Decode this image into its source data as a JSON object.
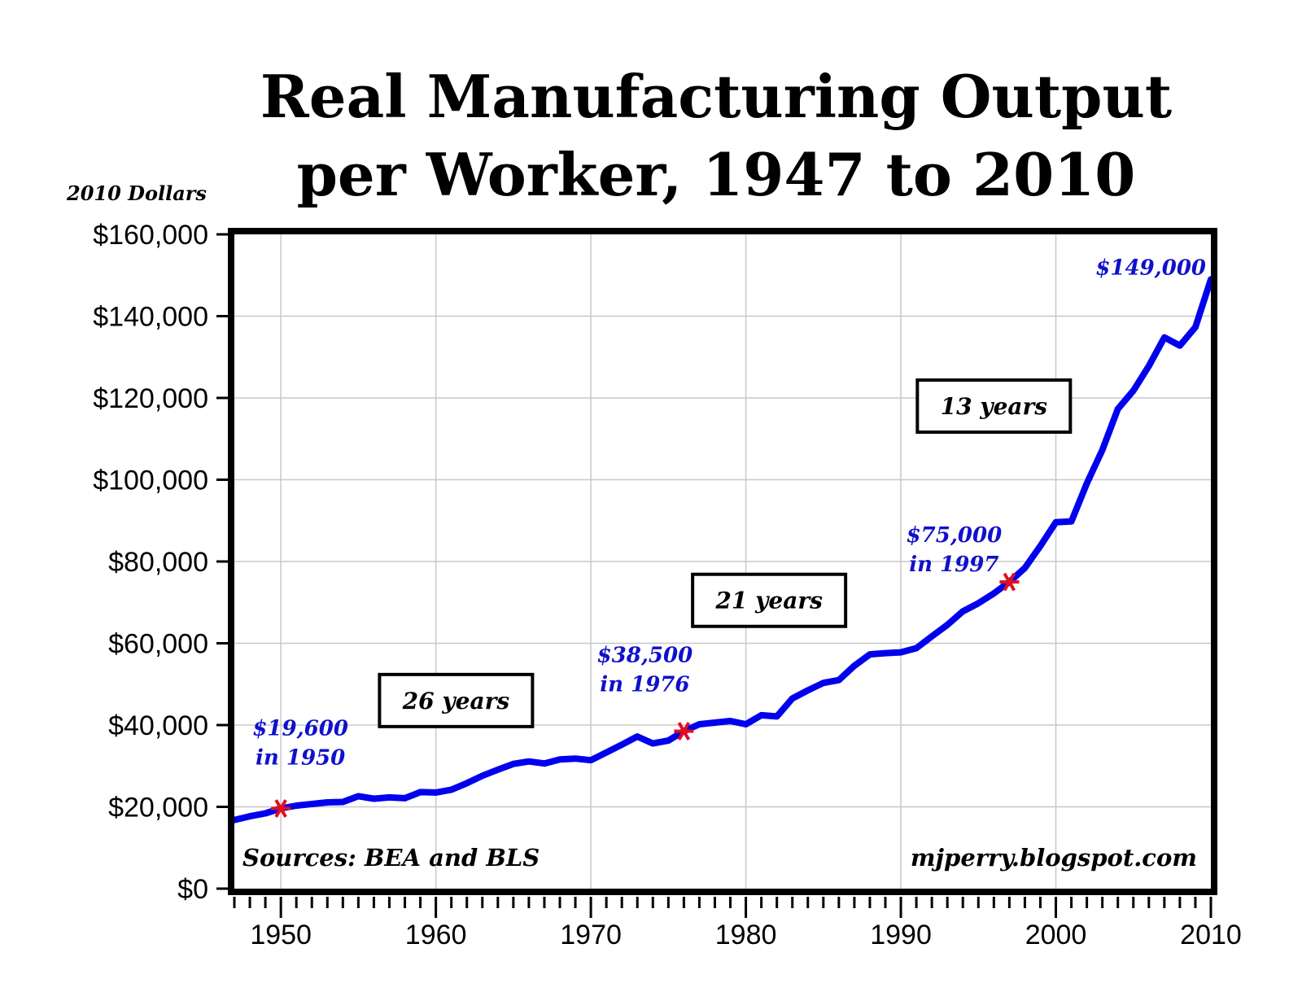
{
  "chart_data": {
    "type": "line",
    "title_lines": [
      "Real Manufacturing Output",
      "per Worker, 1947 to 2010"
    ],
    "ylabel": "2010 Dollars",
    "xlabel": "",
    "xlim": [
      1947,
      2010
    ],
    "ylim": [
      0,
      160000
    ],
    "grid": true,
    "yticks": [
      {
        "value": 0,
        "label": "$0"
      },
      {
        "value": 20000,
        "label": "$20,000"
      },
      {
        "value": 40000,
        "label": "$40,000"
      },
      {
        "value": 60000,
        "label": "$60,000"
      },
      {
        "value": 80000,
        "label": "$80,000"
      },
      {
        "value": 100000,
        "label": "$100,000"
      },
      {
        "value": 120000,
        "label": "$120,000"
      },
      {
        "value": 140000,
        "label": "$140,000"
      },
      {
        "value": 160000,
        "label": "$160,000"
      }
    ],
    "xticks": [
      {
        "value": 1950,
        "label": "1950"
      },
      {
        "value": 1960,
        "label": "1960"
      },
      {
        "value": 1970,
        "label": "1970"
      },
      {
        "value": 1980,
        "label": "1980"
      },
      {
        "value": 1990,
        "label": "1990"
      },
      {
        "value": 2000,
        "label": "2000"
      },
      {
        "value": 2010,
        "label": "2010"
      }
    ],
    "series": [
      {
        "color": "#0000ee",
        "x": [
          1947,
          1948,
          1949,
          1950,
          1951,
          1952,
          1953,
          1954,
          1955,
          1956,
          1957,
          1958,
          1959,
          1960,
          1961,
          1962,
          1963,
          1964,
          1965,
          1966,
          1967,
          1968,
          1969,
          1970,
          1971,
          1972,
          1973,
          1974,
          1975,
          1976,
          1977,
          1978,
          1979,
          1980,
          1981,
          1982,
          1983,
          1984,
          1985,
          1986,
          1987,
          1988,
          1989,
          1990,
          1991,
          1992,
          1993,
          1994,
          1995,
          1996,
          1997,
          1998,
          1999,
          2000,
          2001,
          2002,
          2003,
          2004,
          2005,
          2006,
          2007,
          2008,
          2009,
          2010
        ],
        "y": [
          16800,
          17700,
          18400,
          19600,
          20300,
          20700,
          21100,
          21200,
          22600,
          22000,
          22300,
          22100,
          23600,
          23500,
          24200,
          25800,
          27600,
          29100,
          30500,
          31100,
          30600,
          31600,
          31800,
          31400,
          33300,
          35200,
          37200,
          35500,
          36200,
          38500,
          40200,
          40600,
          41000,
          40200,
          42400,
          42100,
          46500,
          48500,
          50300,
          51000,
          54500,
          57300,
          57600,
          57800,
          58800,
          61700,
          64500,
          67800,
          69800,
          72200,
          75000,
          78400,
          83800,
          89600,
          89800,
          99100,
          107300,
          117300,
          121800,
          127800,
          134800,
          132800,
          137300,
          149000
        ]
      }
    ],
    "highlight_points": [
      {
        "x": 1950,
        "y": 19600,
        "label_line1": "$19,600",
        "label_line2": "in 1950"
      },
      {
        "x": 1976,
        "y": 38500,
        "label_line1": "$38,500",
        "label_line2": "in 1976"
      },
      {
        "x": 1997,
        "y": 75000,
        "label_line1": "$75,000",
        "label_line2": "in 1997"
      }
    ],
    "end_label": {
      "x": 2010,
      "y": 149000,
      "text": "$149,000"
    },
    "interval_boxes": [
      {
        "text": "26 years",
        "x_center": 1961.3,
        "y_center": 46000
      },
      {
        "text": "21 years",
        "x_center": 1981.5,
        "y_center": 70500
      },
      {
        "text": "13 years",
        "x_center": 1996.0,
        "y_center": 118000
      }
    ],
    "source_note": "Sources: BEA and BLS",
    "credit": "mjperry.blogspot.com"
  }
}
